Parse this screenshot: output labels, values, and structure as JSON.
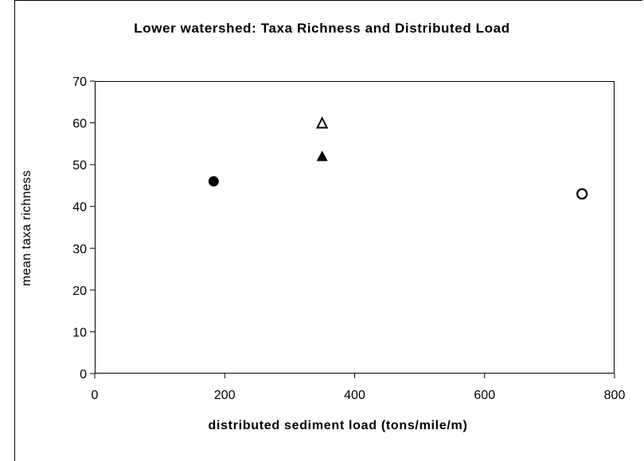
{
  "chart_data": {
    "type": "scatter",
    "title": "Lower watershed: Taxa Richness and Distributed Load",
    "xlabel": "distributed sediment load (tons/mile/m)",
    "ylabel": "mean taxa richness",
    "xlim": [
      0,
      800
    ],
    "ylim": [
      0,
      70
    ],
    "xticks": [
      0,
      200,
      400,
      600,
      800
    ],
    "yticks": [
      0,
      10,
      20,
      30,
      40,
      50,
      60,
      70
    ],
    "grid": false,
    "points": [
      {
        "x": 183,
        "y": 46,
        "marker": "filled-circle"
      },
      {
        "x": 350,
        "y": 60,
        "marker": "open-triangle"
      },
      {
        "x": 350,
        "y": 52,
        "marker": "filled-triangle"
      },
      {
        "x": 750,
        "y": 43,
        "marker": "open-circle"
      }
    ],
    "colors": {
      "marker": "#000000",
      "axis": "#000000",
      "background": "#ffffff"
    }
  }
}
